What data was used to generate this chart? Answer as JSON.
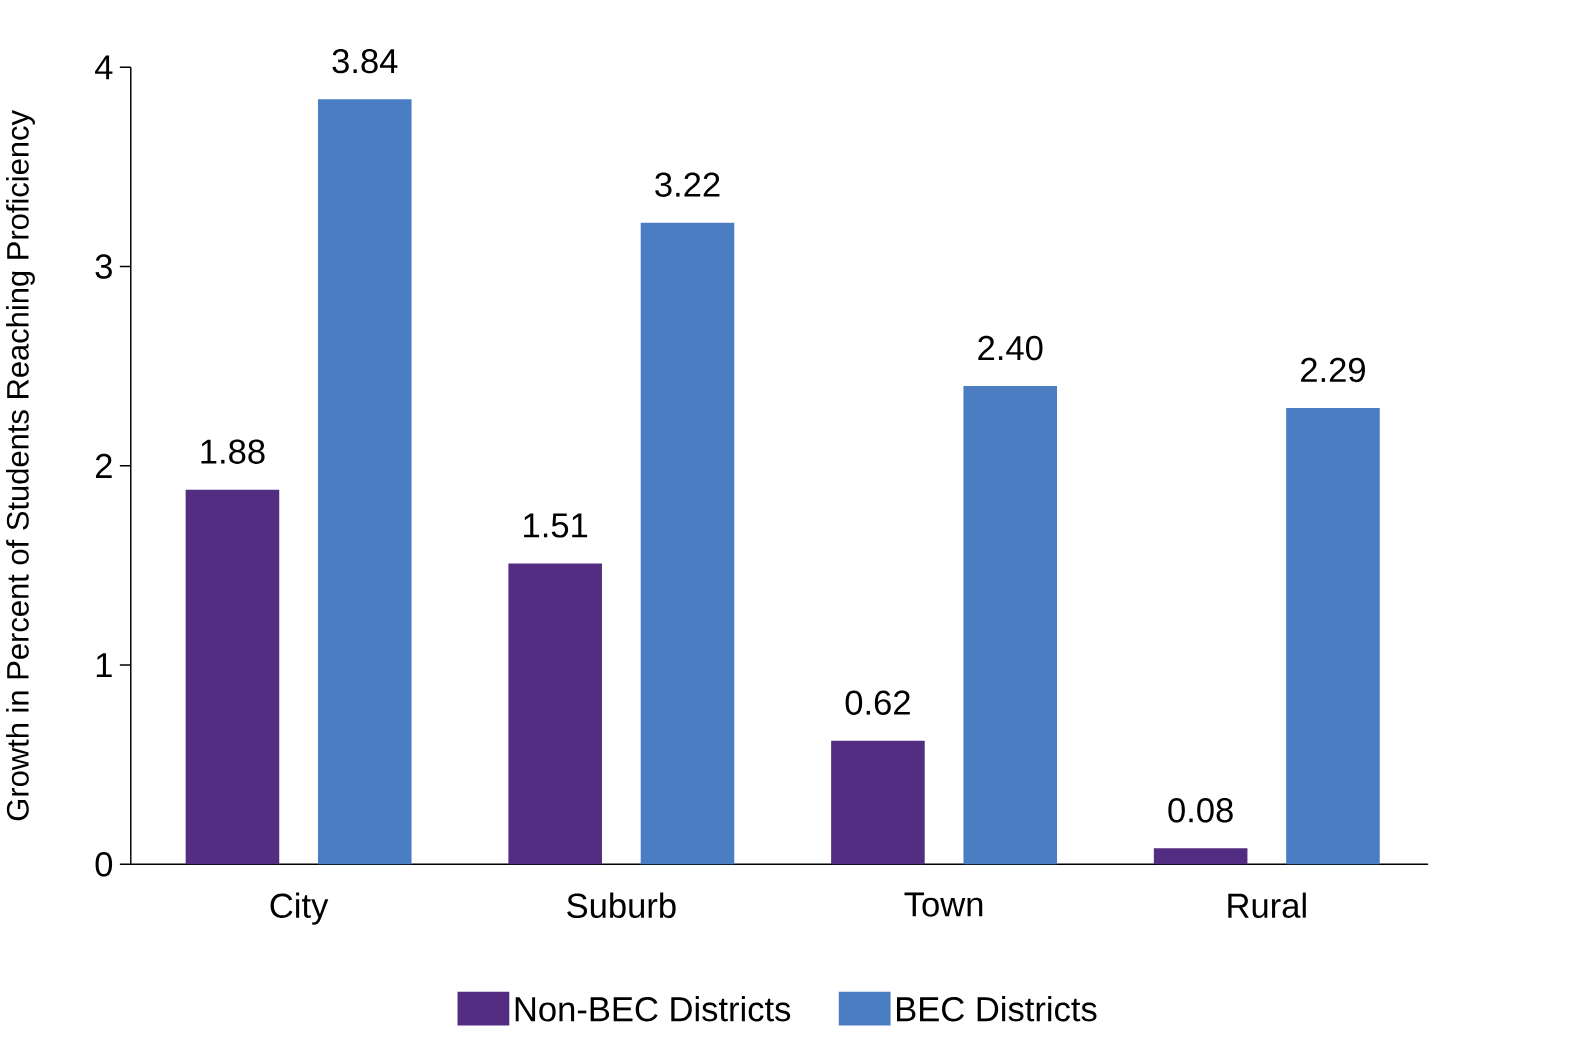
{
  "chart_data": {
    "type": "bar",
    "ylabel": "Growth in Percent of Students Reaching Proficiency",
    "categories": [
      "City",
      "Suburb",
      "Town",
      "Rural"
    ],
    "series": [
      {
        "name": "Non-BEC Districts",
        "color": "#532d82",
        "values": [
          1.88,
          1.51,
          0.62,
          0.08
        ],
        "value_labels": [
          "1.88",
          "1.51",
          "0.62",
          "0.08"
        ]
      },
      {
        "name": "BEC Districts",
        "color": "#4a7dc1",
        "values": [
          3.84,
          3.22,
          2.4,
          2.29
        ],
        "value_labels": [
          "3.84",
          "3.22",
          "2.40",
          "2.29"
        ]
      }
    ],
    "ylim": [
      0,
      4
    ],
    "yticks": [
      0,
      1,
      2,
      3,
      4
    ],
    "grid": false,
    "legend": "bottom"
  }
}
